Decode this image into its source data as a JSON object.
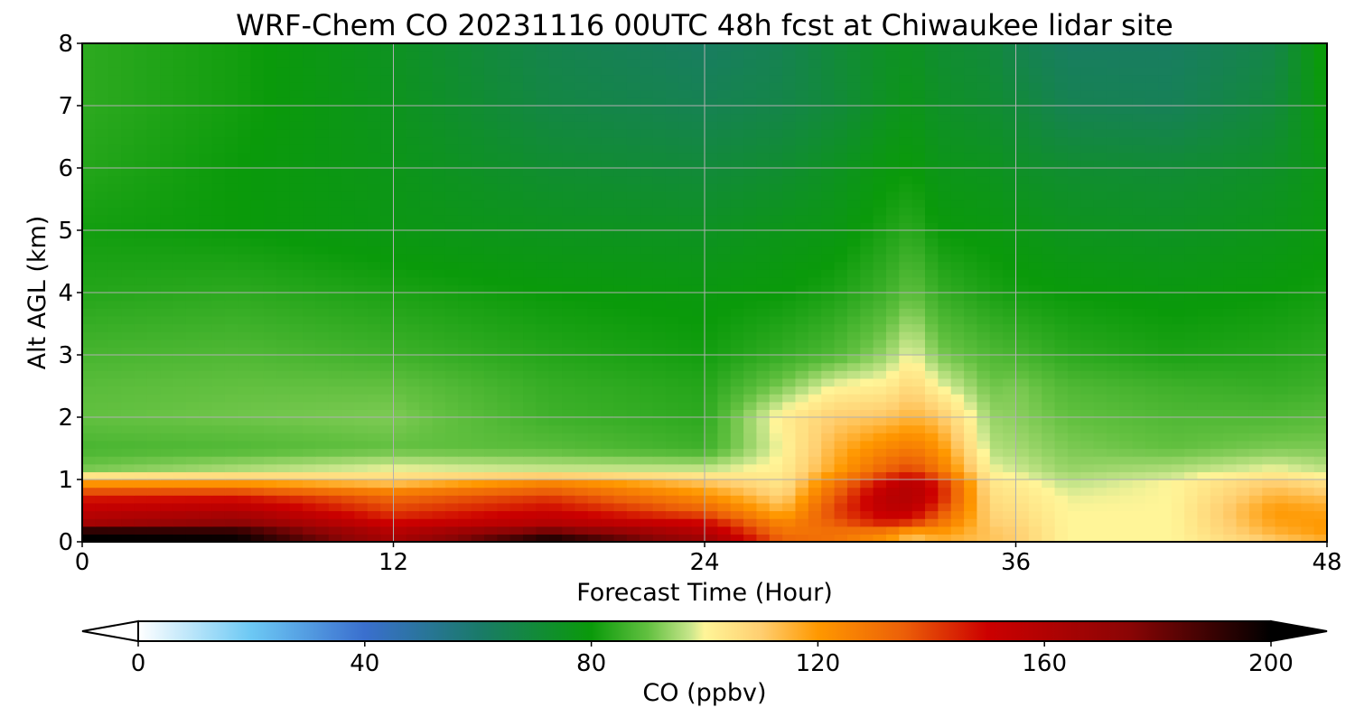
{
  "chart_data": {
    "type": "heatmap",
    "title": "WRF-Chem CO  20231116 00UTC 48h fcst at Chiwaukee lidar site",
    "xlabel": "Forecast Time (Hour)",
    "ylabel": "Alt AGL (km)",
    "xlim": [
      0,
      48
    ],
    "ylim": [
      0,
      8
    ],
    "x_ticks": [
      "0",
      "12",
      "24",
      "36",
      "48"
    ],
    "y_ticks": [
      "0",
      "1",
      "2",
      "3",
      "4",
      "5",
      "6",
      "7",
      "8"
    ],
    "grid": true,
    "colorbar": {
      "label": "CO  (ppbv)",
      "range": [
        0,
        200
      ],
      "ticks": [
        "0",
        "40",
        "80",
        "120",
        "160",
        "200"
      ],
      "extend": "both",
      "orientation": "horizontal",
      "stops": [
        {
          "v": 0,
          "c": "#ffffff"
        },
        {
          "v": 20,
          "c": "#6cc8f4"
        },
        {
          "v": 40,
          "c": "#3a6fce"
        },
        {
          "v": 60,
          "c": "#1a7a6a"
        },
        {
          "v": 80,
          "c": "#0a9a0a"
        },
        {
          "v": 90,
          "c": "#62c040"
        },
        {
          "v": 98,
          "c": "#cfe890"
        },
        {
          "v": 100,
          "c": "#fff598"
        },
        {
          "v": 110,
          "c": "#ffce70"
        },
        {
          "v": 120,
          "c": "#ff9800"
        },
        {
          "v": 135,
          "c": "#ec6008"
        },
        {
          "v": 150,
          "c": "#cc0000"
        },
        {
          "v": 175,
          "c": "#8a0505"
        },
        {
          "v": 200,
          "c": "#000000"
        }
      ]
    },
    "times": [
      0,
      6,
      12,
      18,
      24,
      27,
      29,
      31,
      32,
      33,
      35,
      36,
      38,
      42,
      46,
      48
    ],
    "altitudes": [
      0,
      0.15,
      0.3,
      0.5,
      0.75,
      0.95,
      1.15,
      1.5,
      2.0,
      2.5,
      3.0,
      4.0,
      5.0,
      6.0,
      7.0,
      8.0
    ],
    "values": [
      [
        200,
        200,
        165,
        200,
        170,
        135,
        130,
        120,
        110,
        115,
        112,
        110,
        100,
        100,
        110,
        115
      ],
      [
        200,
        195,
        160,
        185,
        160,
        130,
        130,
        125,
        115,
        120,
        112,
        110,
        100,
        100,
        115,
        120
      ],
      [
        165,
        175,
        150,
        160,
        150,
        125,
        135,
        145,
        140,
        130,
        110,
        108,
        100,
        100,
        118,
        120
      ],
      [
        155,
        160,
        140,
        150,
        135,
        115,
        140,
        155,
        155,
        140,
        108,
        106,
        100,
        100,
        120,
        118
      ],
      [
        145,
        145,
        132,
        140,
        122,
        108,
        135,
        158,
        160,
        148,
        106,
        104,
        99,
        100,
        115,
        112
      ],
      [
        120,
        120,
        112,
        125,
        112,
        104,
        128,
        150,
        158,
        145,
        104,
        102,
        97,
        100,
        110,
        105
      ],
      [
        92,
        96,
        100,
        98,
        98,
        102,
        118,
        135,
        140,
        130,
        100,
        98,
        94,
        96,
        100,
        97
      ],
      [
        87,
        88,
        90,
        89,
        86,
        100,
        115,
        125,
        128,
        122,
        96,
        95,
        92,
        90,
        92,
        92
      ],
      [
        90,
        91,
        92,
        86,
        84,
        102,
        110,
        112,
        115,
        112,
        94,
        93,
        90,
        88,
        88,
        89
      ],
      [
        89,
        90,
        90,
        85,
        83,
        92,
        100,
        102,
        108,
        100,
        91,
        92,
        88,
        86,
        85,
        86
      ],
      [
        87,
        88,
        86,
        83,
        81,
        85,
        88,
        94,
        100,
        92,
        88,
        87,
        84,
        82,
        83,
        84
      ],
      [
        83,
        84,
        82,
        80,
        79,
        80,
        82,
        86,
        90,
        85,
        82,
        81,
        80,
        79,
        80,
        81
      ],
      [
        81,
        80,
        78,
        76,
        75,
        77,
        78,
        82,
        84,
        80,
        79,
        78,
        76,
        75,
        77,
        79
      ],
      [
        83,
        80,
        77,
        72,
        70,
        72,
        75,
        79,
        80,
        77,
        76,
        74,
        72,
        71,
        74,
        78
      ],
      [
        84,
        81,
        76,
        68,
        65,
        67,
        70,
        75,
        77,
        74,
        72,
        70,
        65,
        64,
        70,
        80
      ],
      [
        84,
        81,
        75,
        66,
        62,
        65,
        70,
        74,
        75,
        72,
        70,
        66,
        62,
        62,
        67,
        82
      ]
    ]
  }
}
